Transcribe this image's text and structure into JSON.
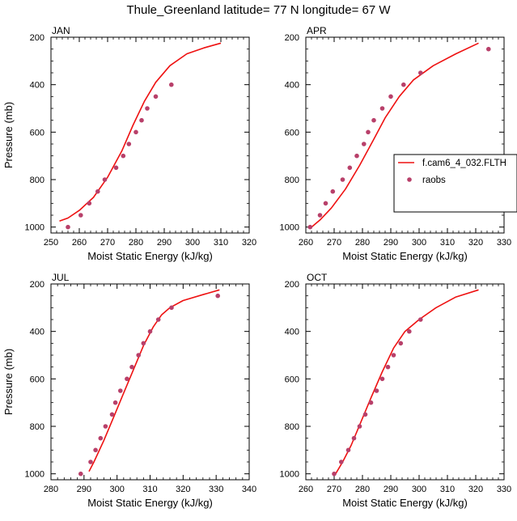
{
  "title": "Thule_Greenland  latitude= 77 N longitude= 67 W",
  "legend": {
    "model_label": "f.cam6_4_032.FLTH",
    "obs_label": "raobs"
  },
  "colors": {
    "model": "#ee1111",
    "obs": "#b8406a"
  },
  "chart_data": [
    {
      "type": "line",
      "panel_label": "JAN",
      "xlabel": "Moist Static Energy (kJ/kg)",
      "ylabel": "Pressure (mb)",
      "xlim": [
        250,
        320
      ],
      "ylim": [
        1025,
        200
      ],
      "xticks": [
        250,
        260,
        270,
        280,
        290,
        300,
        310,
        320
      ],
      "yticks": [
        200,
        400,
        600,
        800,
        1000
      ],
      "grid": false,
      "series": [
        {
          "name": "f.cam6_4_032.FLTH",
          "kind": "line",
          "points": [
            [
              253,
              975
            ],
            [
              256,
              962
            ],
            [
              260,
              930
            ],
            [
              265,
              875
            ],
            [
              270,
              790
            ],
            [
              275,
              680
            ],
            [
              279,
              570
            ],
            [
              283,
              470
            ],
            [
              287,
              390
            ],
            [
              292,
              320
            ],
            [
              298,
              270
            ],
            [
              304,
              245
            ],
            [
              310,
              225
            ]
          ]
        },
        {
          "name": "raobs",
          "kind": "scatter",
          "points": [
            [
              256,
              1000
            ],
            [
              260.5,
              950
            ],
            [
              263.5,
              900
            ],
            [
              266.5,
              850
            ],
            [
              269,
              800
            ],
            [
              273,
              750
            ],
            [
              275.5,
              700
            ],
            [
              277.5,
              650
            ],
            [
              280,
              600
            ],
            [
              282,
              550
            ],
            [
              284,
              500
            ],
            [
              287,
              450
            ],
            [
              292.5,
              400
            ]
          ]
        }
      ]
    },
    {
      "type": "line",
      "panel_label": "APR",
      "xlabel": "Moist Static Energy (kJ/kg)",
      "ylabel": "",
      "xlim": [
        260,
        330
      ],
      "ylim": [
        1025,
        200
      ],
      "xticks": [
        260,
        270,
        280,
        290,
        300,
        310,
        320,
        330
      ],
      "yticks": [
        200,
        400,
        600,
        800,
        1000
      ],
      "grid": false,
      "legend_position": "right",
      "series": [
        {
          "name": "f.cam6_4_032.FLTH",
          "kind": "line",
          "points": [
            [
              262,
              1000
            ],
            [
              265,
              970
            ],
            [
              269,
              920
            ],
            [
              274,
              840
            ],
            [
              279,
              740
            ],
            [
              284,
              630
            ],
            [
              288,
              540
            ],
            [
              293,
              450
            ],
            [
              298,
              380
            ],
            [
              305,
              320
            ],
            [
              313,
              270
            ],
            [
              321,
              225
            ]
          ]
        },
        {
          "name": "raobs",
          "kind": "scatter",
          "points": [
            [
              261.5,
              1000
            ],
            [
              265,
              950
            ],
            [
              267,
              900
            ],
            [
              269.5,
              850
            ],
            [
              273,
              800
            ],
            [
              275.5,
              750
            ],
            [
              278,
              700
            ],
            [
              280.5,
              650
            ],
            [
              282,
              600
            ],
            [
              284,
              550
            ],
            [
              287,
              500
            ],
            [
              290,
              450
            ],
            [
              294.5,
              400
            ],
            [
              300.5,
              350
            ],
            [
              324.5,
              250
            ]
          ]
        }
      ]
    },
    {
      "type": "line",
      "panel_label": "JUL",
      "xlabel": "Moist Static Energy (kJ/kg)",
      "ylabel": "Pressure (mb)",
      "xlim": [
        280,
        340
      ],
      "ylim": [
        1025,
        200
      ],
      "xticks": [
        280,
        290,
        300,
        310,
        320,
        330,
        340
      ],
      "yticks": [
        200,
        400,
        600,
        800,
        1000
      ],
      "grid": false,
      "series": [
        {
          "name": "f.cam6_4_032.FLTH",
          "kind": "line",
          "points": [
            [
              291.5,
              990
            ],
            [
              293,
              950
            ],
            [
              296,
              860
            ],
            [
              299,
              760
            ],
            [
              302,
              660
            ],
            [
              305,
              560
            ],
            [
              308,
              460
            ],
            [
              311,
              380
            ],
            [
              313.5,
              330
            ],
            [
              316,
              300
            ],
            [
              320,
              270
            ],
            [
              326,
              245
            ],
            [
              331,
              225
            ]
          ]
        },
        {
          "name": "raobs",
          "kind": "scatter",
          "points": [
            [
              289,
              1000
            ],
            [
              292,
              950
            ],
            [
              293.5,
              900
            ],
            [
              295,
              850
            ],
            [
              296.5,
              800
            ],
            [
              298.5,
              750
            ],
            [
              299.5,
              700
            ],
            [
              301,
              650
            ],
            [
              303,
              600
            ],
            [
              304.5,
              550
            ],
            [
              306.5,
              500
            ],
            [
              308,
              450
            ],
            [
              310,
              400
            ],
            [
              312.5,
              350
            ],
            [
              316.5,
              300
            ],
            [
              330.5,
              250
            ]
          ]
        }
      ]
    },
    {
      "type": "line",
      "panel_label": "OCT",
      "xlabel": "Moist Static Energy (kJ/kg)",
      "ylabel": "",
      "xlim": [
        260,
        330
      ],
      "ylim": [
        1025,
        200
      ],
      "xticks": [
        260,
        270,
        280,
        290,
        300,
        310,
        320,
        330
      ],
      "yticks": [
        200,
        400,
        600,
        800,
        1000
      ],
      "grid": false,
      "series": [
        {
          "name": "f.cam6_4_032.FLTH",
          "kind": "line",
          "points": [
            [
              270.5,
              1000
            ],
            [
              273,
              950
            ],
            [
              276,
              880
            ],
            [
              279.5,
              780
            ],
            [
              283,
              680
            ],
            [
              287,
              570
            ],
            [
              291,
              470
            ],
            [
              295,
              400
            ],
            [
              300,
              350
            ],
            [
              306,
              300
            ],
            [
              313,
              255
            ],
            [
              321,
              225
            ]
          ]
        },
        {
          "name": "raobs",
          "kind": "scatter",
          "points": [
            [
              270,
              1000
            ],
            [
              272.5,
              950
            ],
            [
              275,
              900
            ],
            [
              277,
              850
            ],
            [
              279,
              800
            ],
            [
              281,
              750
            ],
            [
              283,
              700
            ],
            [
              285,
              650
            ],
            [
              287,
              600
            ],
            [
              289,
              550
            ],
            [
              291,
              500
            ],
            [
              293.5,
              450
            ],
            [
              296.5,
              400
            ],
            [
              300.5,
              350
            ]
          ]
        }
      ]
    }
  ]
}
